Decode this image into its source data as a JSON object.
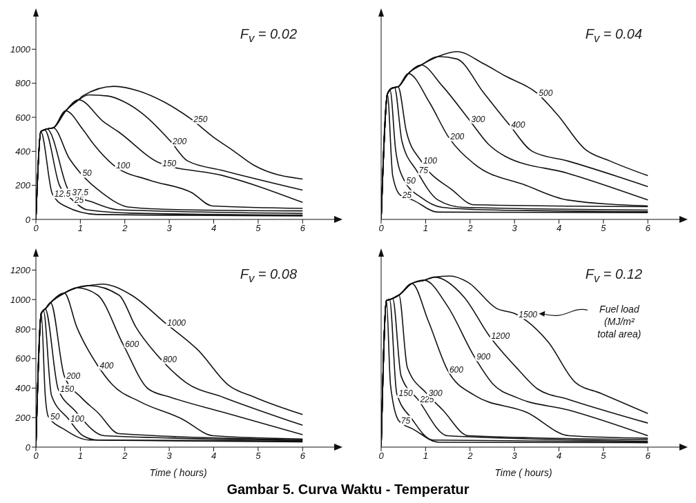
{
  "chart_data": [
    {
      "type": "line",
      "title": "F$_{v}$ = 0.02",
      "xlim": [
        0,
        6.4
      ],
      "xticks": [
        0,
        1,
        2,
        3,
        4,
        5,
        6
      ],
      "ylim": [
        0,
        1200
      ],
      "yticks": [
        0,
        200,
        400,
        600,
        800,
        1000
      ],
      "series": [
        {
          "name": "12.5",
          "color": "#111111",
          "x": [
            0,
            0.11,
            0.37,
            0.65,
            1.38,
            3,
            6
          ],
          "values": [
            0,
            516,
            150,
            79,
            29,
            25,
            20
          ]
        },
        {
          "name": "25",
          "color": "#111111",
          "x": [
            0,
            0.11,
            0.2,
            0.53,
            0.82,
            1.15,
            2.3,
            6
          ],
          "values": [
            0,
            516,
            525,
            200,
            115,
            57,
            36,
            25
          ]
        },
        {
          "name": "37.5",
          "color": "#111111",
          "x": [
            0,
            0.11,
            0.25,
            0.77,
            1.29,
            1.85,
            6
          ],
          "values": [
            0,
            516,
            531,
            158,
            100,
            57,
            35
          ]
        },
        {
          "name": "50",
          "color": "#111111",
          "x": [
            0,
            0.11,
            0.25,
            0.39,
            0.75,
            1.0,
            1.48,
            2.1,
            3.27,
            6
          ],
          "values": [
            0,
            516,
            531,
            538,
            359,
            273,
            158,
            72,
            57,
            50
          ]
        },
        {
          "name": "100",
          "color": "#111111",
          "x": [
            0,
            0.11,
            0.25,
            0.39,
            0.67,
            1.05,
            1.29,
            1.76,
            2.56,
            3.5,
            3.97,
            6
          ],
          "values": [
            0,
            516,
            531,
            538,
            638,
            531,
            445,
            316,
            230,
            158,
            79,
            65
          ]
        },
        {
          "name": "150",
          "color": "#111111",
          "x": [
            0,
            0.11,
            0.25,
            0.39,
            0.67,
            0.96,
            1.52,
            1.85,
            2.8,
            4.2,
            6
          ],
          "values": [
            0,
            516,
            531,
            538,
            638,
            703,
            574,
            516,
            330,
            258,
            100
          ]
        },
        {
          "name": "200",
          "color": "#111111",
          "x": [
            0,
            0.11,
            0.25,
            0.39,
            0.67,
            0.96,
            1.19,
            1.62,
            2.0,
            2.42,
            3.03,
            3.41,
            4.21,
            6
          ],
          "values": [
            0,
            516,
            531,
            538,
            638,
            703,
            732,
            725,
            689,
            617,
            459,
            344,
            287,
            172
          ]
        },
        {
          "name": "250",
          "color": "#111111",
          "x": [
            0,
            0.11,
            0.25,
            0.39,
            0.67,
            0.96,
            1.05,
            1.76,
            2.33,
            2.89,
            3.5,
            3.97,
            4.45,
            4.92,
            6
          ],
          "values": [
            0,
            516,
            531,
            538,
            638,
            703,
            725,
            782,
            753,
            689,
            588,
            488,
            402,
            316,
            237
          ]
        }
      ]
    },
    {
      "type": "line",
      "title": "F$_{v}$ = 0.04",
      "tick_labels": "x",
      "xlim": [
        0,
        6.4
      ],
      "xticks": [
        0,
        1,
        2,
        3,
        4,
        5,
        6
      ],
      "ylim": [
        0,
        1200
      ],
      "yticks": [
        0,
        200,
        400,
        600,
        800,
        1000
      ],
      "series": [
        {
          "name": "25",
          "color": "#111111",
          "x": [
            0,
            0.14,
            0.26,
            0.43,
            0.71,
            1.28,
            6
          ],
          "values": [
            0,
            736,
            257,
            143,
            114,
            43,
            40
          ]
        },
        {
          "name": "50",
          "color": "#111111",
          "x": [
            0,
            0.14,
            0.2,
            0.33,
            0.52,
            0.9,
            1.37,
            2.31,
            6
          ],
          "values": [
            0,
            736,
            760,
            400,
            229,
            129,
            71,
            57,
            45
          ]
        },
        {
          "name": "75",
          "color": "#111111",
          "x": [
            0,
            0.14,
            0.3,
            0.47,
            0.8,
            1.28,
            1.84,
            6
          ],
          "values": [
            0,
            736,
            775,
            457,
            286,
            114,
            71,
            55
          ]
        },
        {
          "name": "100",
          "color": "#111111",
          "x": [
            0,
            0.14,
            0.24,
            0.38,
            0.57,
            0.9,
            1.61,
            2.08,
            6
          ],
          "values": [
            0,
            736,
            771,
            779,
            514,
            343,
            171,
            86,
            75
          ]
        },
        {
          "name": "200",
          "color": "#111111",
          "x": [
            0,
            0.14,
            0.24,
            0.38,
            0.61,
            1.09,
            1.51,
            2.08,
            3.26,
            4.2,
            6
          ],
          "values": [
            0,
            736,
            771,
            779,
            857,
            686,
            486,
            329,
            200,
            114,
            79
          ]
        },
        {
          "name": "300",
          "color": "#111111",
          "x": [
            0,
            0.14,
            0.24,
            0.38,
            0.61,
            0.9,
            1.37,
            1.98,
            2.41,
            2.79,
            4.2,
            6
          ],
          "values": [
            0,
            736,
            771,
            779,
            857,
            907,
            786,
            586,
            443,
            371,
            271,
            114
          ]
        },
        {
          "name": "400",
          "color": "#111111",
          "x": [
            0,
            0.14,
            0.24,
            0.38,
            0.61,
            0.9,
            1.28,
            1.7,
            2.31,
            2.88,
            3.4,
            4.2,
            6
          ],
          "values": [
            0,
            736,
            771,
            779,
            857,
            907,
            957,
            943,
            743,
            557,
            400,
            343,
            193
          ]
        },
        {
          "name": "500",
          "color": "#111111",
          "x": [
            0,
            0.14,
            0.24,
            0.38,
            0.61,
            0.9,
            1.28,
            1.7,
            2.31,
            2.79,
            3.5,
            3.97,
            4.58,
            5.15,
            6
          ],
          "values": [
            0,
            736,
            771,
            779,
            857,
            907,
            957,
            986,
            914,
            843,
            743,
            614,
            414,
            343,
            257
          ]
        }
      ]
    },
    {
      "type": "line",
      "title": "F$_{v}$ = 0.08",
      "xlabel": "Time ( hours)",
      "xlim": [
        0,
        6.4
      ],
      "xticks": [
        0,
        1,
        2,
        3,
        4,
        5,
        6
      ],
      "ylim": [
        0,
        1300
      ],
      "yticks": [
        0,
        200,
        400,
        600,
        800,
        1000,
        1200
      ],
      "series": [
        {
          "name": "50",
          "color": "#111111",
          "x": [
            0,
            0.12,
            0.21,
            0.28,
            0.64,
            1.2,
            6
          ],
          "values": [
            0,
            907,
            351,
            206,
            120,
            48,
            35
          ]
        },
        {
          "name": "100",
          "color": "#111111",
          "x": [
            0,
            0.12,
            0.17,
            0.35,
            0.73,
            1.06,
            1.39,
            6
          ],
          "values": [
            0,
            907,
            925,
            351,
            192,
            77,
            48,
            40
          ]
        },
        {
          "name": "150",
          "color": "#111111",
          "x": [
            0,
            0.12,
            0.21,
            0.5,
            0.87,
            1.54,
            6
          ],
          "values": [
            0,
            907,
            936,
            394,
            250,
            77,
            45
          ]
        },
        {
          "name": "200",
          "color": "#111111",
          "x": [
            0,
            0.12,
            0.21,
            0.33,
            0.64,
            1.02,
            1.39,
            1.87,
            6
          ],
          "values": [
            0,
            907,
            936,
            979,
            481,
            336,
            235,
            91,
            50
          ]
        },
        {
          "name": "400",
          "color": "#111111",
          "x": [
            0,
            0.12,
            0.21,
            0.33,
            0.64,
            0.92,
            1.39,
            1.72,
            2.34,
            3.28,
            3.99,
            6
          ],
          "values": [
            0,
            907,
            936,
            979,
            1044,
            813,
            553,
            423,
            308,
            192,
            77,
            55
          ]
        },
        {
          "name": "600",
          "color": "#111111",
          "x": [
            0,
            0.12,
            0.21,
            0.33,
            0.64,
            0.92,
            1.39,
            1.96,
            2.53,
            3.05,
            4.23,
            6
          ],
          "values": [
            0,
            907,
            936,
            979,
            1044,
            1080,
            1030,
            697,
            394,
            336,
            235,
            84
          ]
        },
        {
          "name": "800",
          "color": "#111111",
          "x": [
            0,
            0.12,
            0.21,
            0.33,
            0.64,
            0.92,
            1.2,
            1.87,
            2.25,
            2.81,
            3.38,
            4.23,
            6
          ],
          "values": [
            0,
            907,
            936,
            979,
            1044,
            1080,
            1095,
            1030,
            813,
            596,
            437,
            336,
            148
          ]
        },
        {
          "name": "1000",
          "color": "#111111",
          "x": [
            0,
            0.12,
            0.21,
            0.33,
            0.64,
            0.92,
            1.2,
            1.49,
            2.15,
            2.91,
            3.66,
            4.32,
            4.94,
            6
          ],
          "values": [
            0,
            907,
            936,
            979,
            1044,
            1080,
            1095,
            1105,
            1030,
            841,
            654,
            423,
            336,
            221
          ]
        }
      ]
    },
    {
      "type": "line",
      "title": "F$_{v}$ = 0.12",
      "xlabel": "Time ( hours)",
      "xlim": [
        0,
        6.4
      ],
      "xticks": [
        0,
        1,
        2,
        3,
        4,
        5,
        6
      ],
      "tick_labels": "x",
      "ylim": [
        0,
        1300
      ],
      "yticks": [
        0,
        200,
        400,
        600,
        800,
        1000,
        1200
      ],
      "annotations": [
        "Fuel load (MJ/m² total area)",
        "Gambar 5. Curva Waktu - Temperatur"
      ],
      "series": [
        {
          "name": "75",
          "color": "#111111",
          "x": [
            0,
            0.12,
            0.21,
            0.4,
            0.73,
            1.3,
            6
          ],
          "values": [
            0,
            994,
            423,
            178,
            120,
            33,
            30
          ]
        },
        {
          "name": "150",
          "color": "#111111",
          "x": [
            0,
            0.12,
            0.19,
            0.35,
            0.69,
            1.16,
            6
          ],
          "values": [
            0,
            994,
            1000,
            365,
            192,
            48,
            35
          ]
        },
        {
          "name": "225",
          "color": "#111111",
          "x": [
            0,
            0.12,
            0.19,
            0.26,
            0.45,
            0.83,
            1.49,
            6
          ],
          "values": [
            0,
            994,
            1000,
            1008,
            481,
            322,
            77,
            40
          ]
        },
        {
          "name": "300",
          "color": "#111111",
          "x": [
            0,
            0.12,
            0.19,
            0.26,
            0.4,
            0.59,
            1.02,
            1.39,
            1.96,
            6
          ],
          "values": [
            0,
            994,
            1000,
            1008,
            1030,
            539,
            365,
            250,
            77,
            50
          ]
        },
        {
          "name": "600",
          "color": "#111111",
          "x": [
            0,
            0.12,
            0.19,
            0.26,
            0.4,
            0.69,
            1.06,
            1.49,
            2.1,
            3.28,
            4.23,
            6
          ],
          "values": [
            0,
            994,
            1000,
            1008,
            1030,
            1109,
            856,
            524,
            351,
            235,
            77,
            60
          ]
        },
        {
          "name": "900",
          "color": "#111111",
          "x": [
            0,
            0.12,
            0.19,
            0.26,
            0.4,
            0.69,
            0.97,
            1.49,
            2.1,
            2.53,
            3.05,
            4.23,
            6
          ],
          "values": [
            0,
            994,
            1000,
            1008,
            1030,
            1109,
            1131,
            957,
            611,
            423,
            336,
            250,
            77
          ]
        },
        {
          "name": "1200",
          "color": "#111111",
          "x": [
            0,
            0.12,
            0.19,
            0.26,
            0.4,
            0.69,
            0.97,
            1.2,
            1.87,
            2.43,
            3.09,
            3.52,
            4.23,
            6
          ],
          "values": [
            0,
            994,
            1000,
            1008,
            1030,
            1109,
            1131,
            1152,
            1015,
            755,
            524,
            394,
            322,
            163
          ]
        },
        {
          "name": "1500",
          "color": "#111111",
          "x": [
            0,
            0.12,
            0.19,
            0.26,
            0.4,
            0.69,
            0.97,
            1.2,
            1.54,
            1.96,
            2.58,
            3.05,
            3.76,
            4.37,
            4.94,
            6
          ],
          "values": [
            0,
            994,
            1000,
            1008,
            1030,
            1109,
            1131,
            1152,
            1160,
            1116,
            943,
            899,
            712,
            438,
            365,
            228
          ]
        }
      ]
    }
  ]
}
